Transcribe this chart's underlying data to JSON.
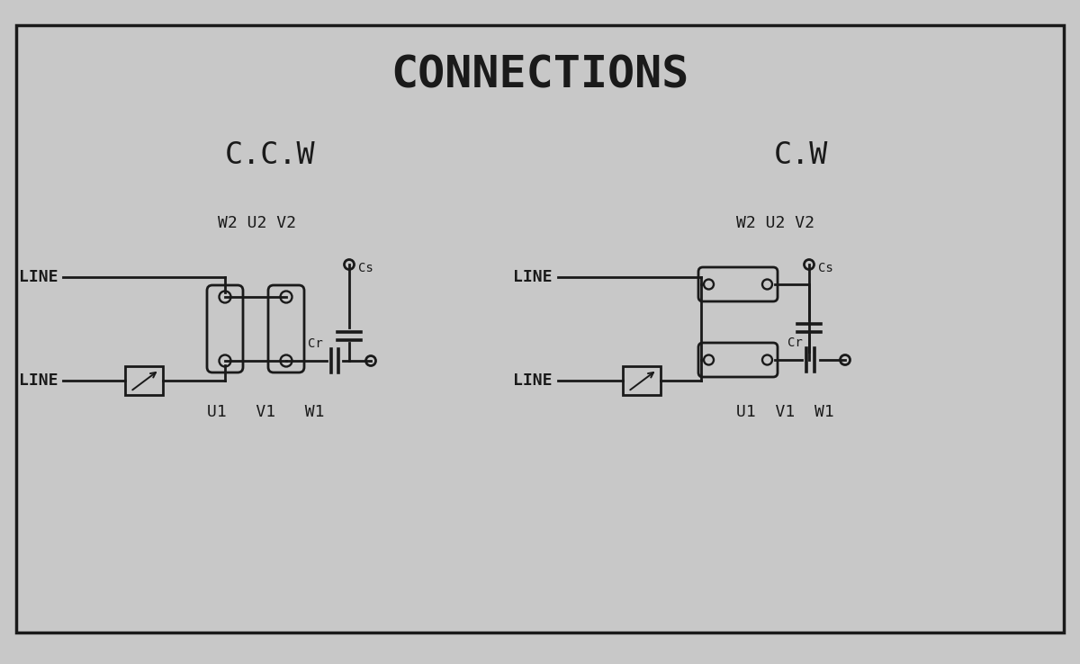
{
  "title": "CONNECTIONS",
  "bg_color": "#c8c8c8",
  "line_color": "#1a1a1a",
  "text_color": "#1a1a1a",
  "ccw_label": "C.C.W",
  "cw_label": "C.W",
  "w2u2v2_label": "W2 U2 V2",
  "u1v1w1_ccw": "U1   V1   W1",
  "u1v1w1_cw": "U1  V1  W1",
  "line_label": "LINE",
  "cs_label": "Cs",
  "cr_label": "Cr",
  "title_fontsize": 36,
  "section_fontsize": 24,
  "label_fontsize": 13,
  "small_fontsize": 10,
  "lw": 2.0
}
